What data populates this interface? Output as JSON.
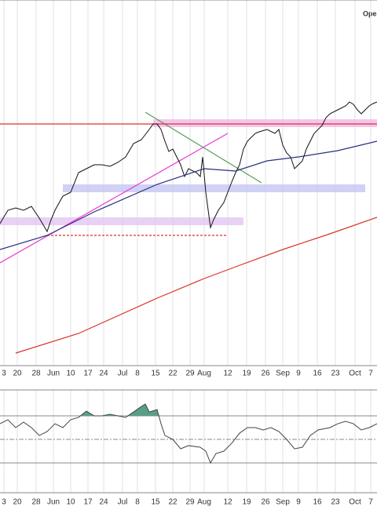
{
  "chart_data": [
    {
      "type": "price",
      "corner_text": "Ope",
      "xlim": [
        0,
        480
      ],
      "ylim": [
        0,
        460
      ],
      "xticks": [
        {
          "value": 5,
          "label": "3"
        },
        {
          "value": 22,
          "label": "20"
        },
        {
          "value": 46,
          "label": "28"
        },
        {
          "value": 68,
          "label": "Jun"
        },
        {
          "value": 90,
          "label": "10"
        },
        {
          "value": 112,
          "label": "17"
        },
        {
          "value": 132,
          "label": "24"
        },
        {
          "value": 156,
          "label": "Jul"
        },
        {
          "value": 175,
          "label": "8"
        },
        {
          "value": 198,
          "label": "15"
        },
        {
          "value": 220,
          "label": "22"
        },
        {
          "value": 242,
          "label": "29"
        },
        {
          "value": 260,
          "label": "Aug"
        },
        {
          "value": 290,
          "label": "12"
        },
        {
          "value": 314,
          "label": "19"
        },
        {
          "value": 338,
          "label": "26"
        },
        {
          "value": 360,
          "label": "Sep"
        },
        {
          "value": 380,
          "label": "9"
        },
        {
          "value": 404,
          "label": "16"
        },
        {
          "value": 427,
          "label": "23"
        },
        {
          "value": 452,
          "label": "Oct"
        },
        {
          "value": 472,
          "label": "7"
        }
      ],
      "series": [
        {
          "color": "#111111",
          "x": [
            0,
            10,
            20,
            30,
            40,
            50,
            60,
            65,
            70,
            80,
            90,
            100,
            110,
            120,
            130,
            140,
            150,
            160,
            170,
            180,
            190,
            195,
            200,
            205,
            210,
            215,
            220,
            230,
            235,
            240,
            250,
            255,
            258,
            262,
            268,
            272,
            278,
            285,
            290,
            295,
            300,
            305,
            310,
            315,
            320,
            325,
            330,
            340,
            350,
            355,
            360,
            365,
            370,
            375,
            380,
            385,
            390,
            395,
            400,
            410,
            415,
            420,
            430,
            440,
            445,
            450,
            455,
            460,
            465,
            470,
            475,
            480
          ],
          "values": [
            185,
            202,
            205,
            202,
            207,
            192,
            175,
            190,
            202,
            220,
            225,
            250,
            255,
            260,
            260,
            258,
            263,
            270,
            287,
            292,
            305,
            312,
            312,
            305,
            290,
            277,
            280,
            260,
            245,
            255,
            250,
            245,
            270,
            225,
            180,
            190,
            202,
            212,
            225,
            238,
            250,
            260,
            280,
            290,
            295,
            300,
            302,
            305,
            300,
            305,
            285,
            275,
            270,
            255,
            260,
            265,
            280,
            290,
            300,
            310,
            320,
            325,
            330,
            335,
            340,
            337,
            330,
            325,
            330,
            335,
            338,
            340
          ]
        },
        {
          "color": "#2a2f80",
          "x": [
            0,
            60,
            120,
            200,
            260,
            300,
            340,
            380,
            430,
            480
          ],
          "values": [
            152,
            170,
            200,
            235,
            255,
            252,
            265,
            270,
            278,
            290
          ]
        },
        {
          "color": "#d9342b",
          "x": [
            20,
            100,
            200,
            260,
            300,
            360,
            420,
            480
          ],
          "values": [
            20,
            45,
            90,
            115,
            130,
            152,
            172,
            193
          ]
        }
      ],
      "bands": [
        {
          "color": "#f2b8e8",
          "x": [
            195,
            480
          ],
          "y": [
            308,
            318
          ]
        },
        {
          "color": "#c4c6f2",
          "x": [
            80,
            465
          ],
          "y": [
            225,
            235
          ]
        },
        {
          "color": "#e3c6f2",
          "x": [
            0,
            310
          ],
          "y": [
            183,
            193
          ]
        }
      ],
      "lines": [
        {
          "color": "#e83ad0",
          "x": [
            0,
            290
          ],
          "y": [
            135,
            300
          ]
        },
        {
          "color": "#5a9a5a",
          "x": [
            185,
            333
          ],
          "y": [
            327,
            237
          ]
        },
        {
          "color": "#d9342b",
          "x": [
            0,
            480
          ],
          "y": [
            312,
            312
          ]
        },
        {
          "color": "#d9342b",
          "x": [
            60,
            290
          ],
          "y": [
            170,
            170
          ],
          "dashed": true
        }
      ]
    },
    {
      "type": "rsi",
      "xlim": [
        0,
        480
      ],
      "ylim": [
        0,
        100
      ],
      "yticks": [
        30,
        50,
        70
      ],
      "fill_color": "#5a9e8a",
      "xticks": [
        {
          "value": 5,
          "label": "3"
        },
        {
          "value": 22,
          "label": "20"
        },
        {
          "value": 46,
          "label": "28"
        },
        {
          "value": 68,
          "label": "Jun"
        },
        {
          "value": 90,
          "label": "10"
        },
        {
          "value": 112,
          "label": "17"
        },
        {
          "value": 132,
          "label": "24"
        },
        {
          "value": 156,
          "label": "Jul"
        },
        {
          "value": 175,
          "label": "8"
        },
        {
          "value": 198,
          "label": "15"
        },
        {
          "value": 220,
          "label": "22"
        },
        {
          "value": 242,
          "label": "29"
        },
        {
          "value": 260,
          "label": "Aug"
        },
        {
          "value": 290,
          "label": "12"
        },
        {
          "value": 314,
          "label": "19"
        },
        {
          "value": 338,
          "label": "26"
        },
        {
          "value": 360,
          "label": "Sep"
        },
        {
          "value": 380,
          "label": "9"
        },
        {
          "value": 404,
          "label": "16"
        },
        {
          "value": 427,
          "label": "23"
        },
        {
          "value": 452,
          "label": "Oct"
        },
        {
          "value": 472,
          "label": "7"
        }
      ],
      "series": [
        {
          "color": "#444444",
          "x": [
            0,
            10,
            20,
            30,
            40,
            50,
            60,
            70,
            80,
            90,
            100,
            110,
            120,
            130,
            140,
            150,
            160,
            170,
            180,
            185,
            190,
            200,
            205,
            210,
            220,
            230,
            240,
            255,
            262,
            268,
            275,
            285,
            295,
            305,
            315,
            325,
            335,
            345,
            355,
            365,
            375,
            385,
            395,
            405,
            420,
            430,
            440,
            450,
            460,
            470,
            480
          ],
          "values": [
            63.3,
            66.7,
            60,
            64.7,
            60,
            53.3,
            56.7,
            63.3,
            60,
            66.7,
            68.7,
            74,
            70,
            70,
            71.3,
            70,
            68.7,
            73.3,
            78,
            80,
            73.3,
            75.3,
            63.3,
            53.3,
            50,
            42,
            44.7,
            43.3,
            40,
            30,
            38,
            40,
            46.7,
            55.3,
            60,
            60,
            58,
            60,
            56.7,
            50,
            42,
            43.3,
            53.3,
            58,
            60,
            63.3,
            65.3,
            63.3,
            58,
            60,
            63.3
          ]
        }
      ]
    }
  ]
}
